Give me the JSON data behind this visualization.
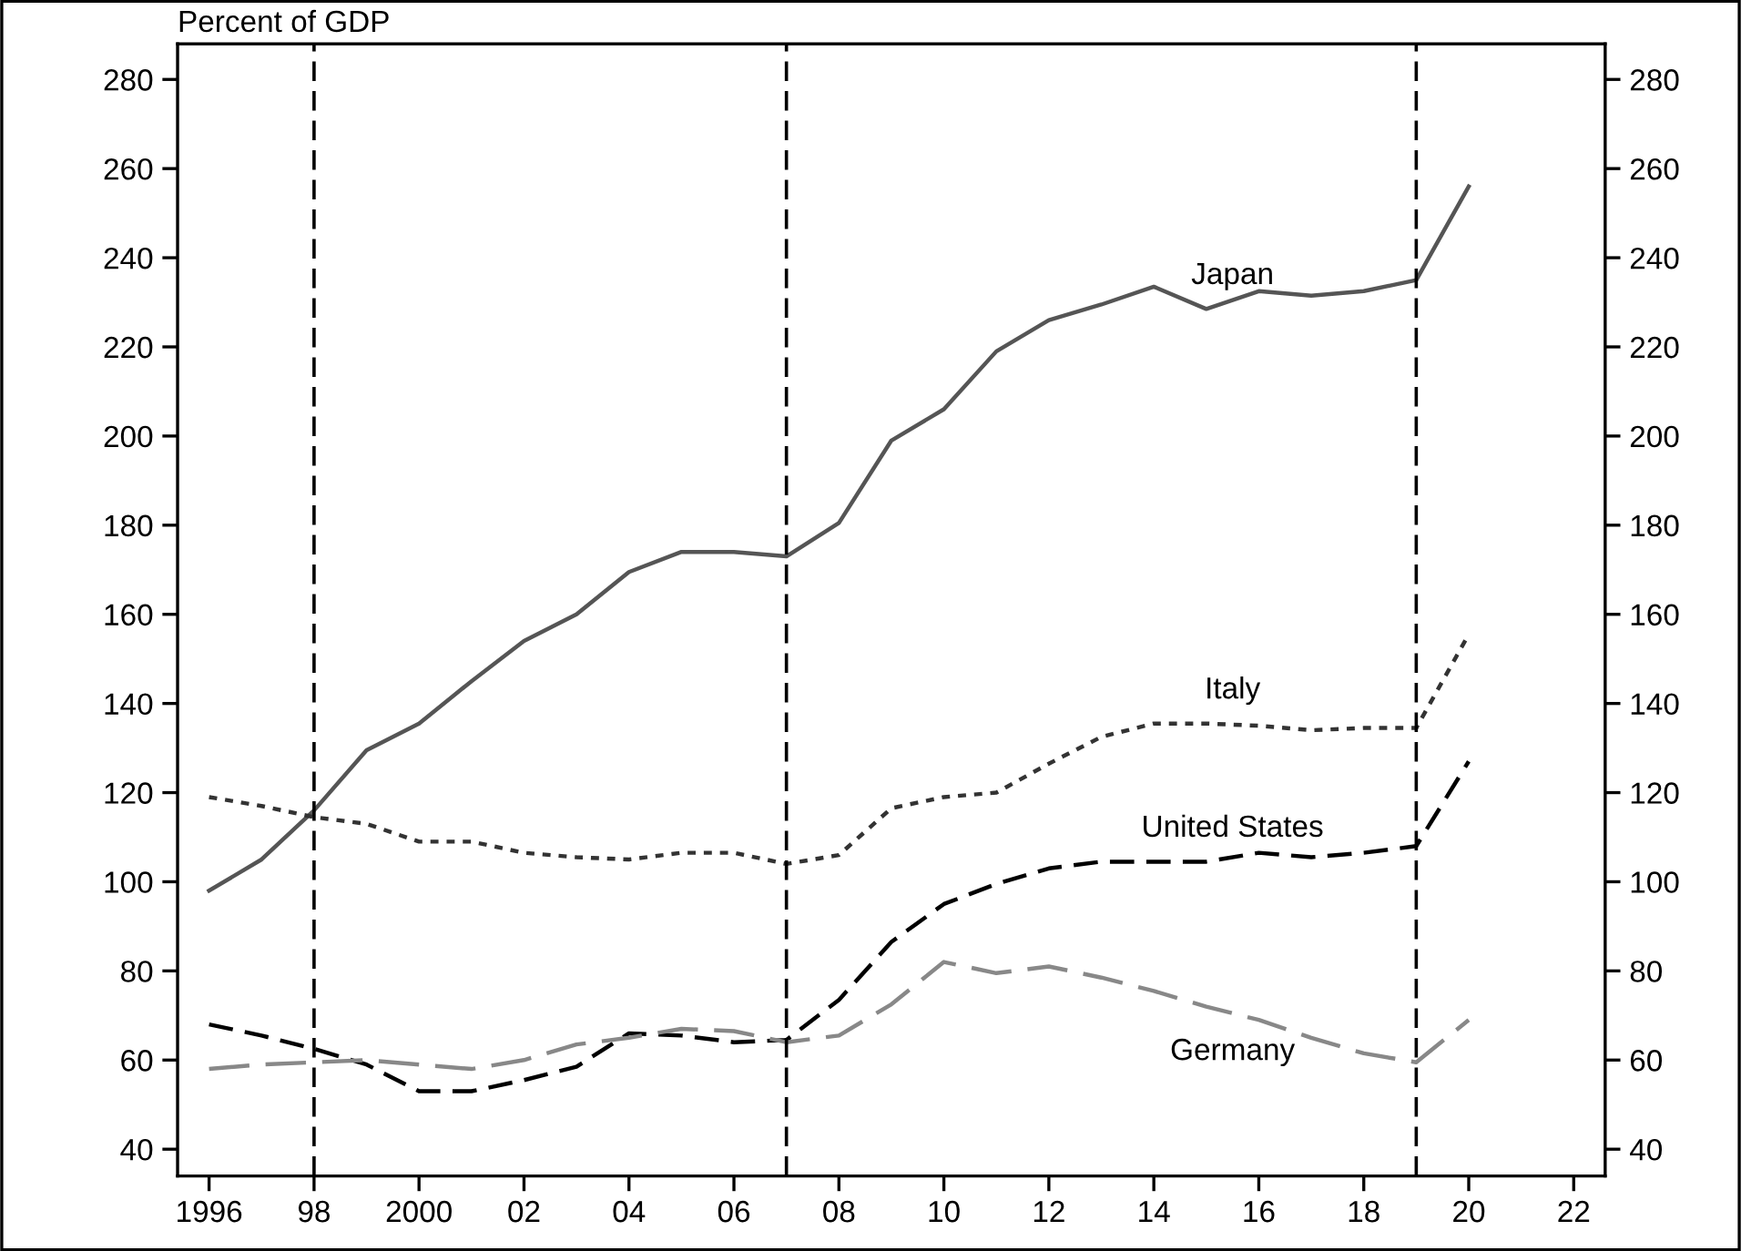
{
  "chart_data": {
    "type": "line",
    "ylabel": "Percent of GDP",
    "x": [
      1996,
      1997,
      1998,
      1999,
      2000,
      2001,
      2002,
      2003,
      2004,
      2005,
      2006,
      2007,
      2008,
      2009,
      2010,
      2011,
      2012,
      2013,
      2014,
      2015,
      2016,
      2017,
      2018,
      2019,
      2020
    ],
    "series": [
      {
        "name": "Japan",
        "color": "#555555",
        "line_style": "solid",
        "values": [
          98,
          105,
          116,
          129.5,
          135.5,
          145,
          154,
          160,
          169.5,
          174,
          174,
          173,
          180.5,
          199,
          206,
          219,
          226,
          229.5,
          233.5,
          228.5,
          232.5,
          231.5,
          232.5,
          235,
          256
        ]
      },
      {
        "name": "Italy",
        "color": "#333333",
        "line_style": "dotted",
        "values": [
          119,
          117,
          114.5,
          113,
          109,
          109,
          106.5,
          105.5,
          105,
          106.5,
          106.5,
          104,
          106,
          116.5,
          119,
          120,
          126.5,
          132.5,
          135.5,
          135.5,
          135,
          134,
          134.5,
          134.5,
          155.5
        ]
      },
      {
        "name": "United States",
        "color": "#000000",
        "line_style": "dashed",
        "values": [
          68,
          65.5,
          62.5,
          59,
          53,
          53,
          55.5,
          58.5,
          66,
          65.5,
          64,
          64.5,
          73.5,
          86.5,
          95,
          99.5,
          103,
          104.5,
          104.5,
          104.5,
          106.5,
          105.5,
          106.5,
          108,
          127
        ]
      },
      {
        "name": "Germany",
        "color": "#888888",
        "line_style": "longdash",
        "values": [
          58,
          59,
          59.5,
          60,
          59,
          58,
          60,
          63.5,
          65,
          67,
          66.5,
          64,
          65.5,
          72.5,
          82,
          79.5,
          81,
          78.5,
          75.5,
          72,
          69,
          65,
          61.5,
          59.5,
          69
        ]
      }
    ],
    "ref_lines": [
      {
        "axis": "x",
        "value": 1998,
        "color": "#000000",
        "line_style": "dashed"
      },
      {
        "axis": "x",
        "value": 2007,
        "color": "#000000",
        "line_style": "dashed"
      },
      {
        "axis": "x",
        "value": 2019,
        "color": "#000000",
        "line_style": "dashed"
      }
    ],
    "xlim": [
      1995.4,
      2022.6
    ],
    "xticks": [
      1996,
      {
        "value": 1998,
        "label": "98"
      },
      2000,
      {
        "value": 2002,
        "label": "02"
      },
      {
        "value": 2004,
        "label": "04"
      },
      {
        "value": 2006,
        "label": "06"
      },
      {
        "value": 2008,
        "label": "08"
      },
      {
        "value": 2010,
        "label": "10"
      },
      {
        "value": 2012,
        "label": "12"
      },
      {
        "value": 2014,
        "label": "14"
      },
      {
        "value": 2016,
        "label": "16"
      },
      {
        "value": 2018,
        "label": "18"
      },
      {
        "value": 2020,
        "label": "20"
      },
      {
        "value": 2022,
        "label": "22"
      }
    ],
    "ylim": [
      34,
      288
    ],
    "yticks": [
      40,
      60,
      80,
      100,
      120,
      140,
      160,
      180,
      200,
      220,
      240,
      260,
      280
    ],
    "y2lim": [
      34,
      288
    ],
    "y2ticks": [
      40,
      60,
      80,
      100,
      120,
      140,
      160,
      180,
      200,
      220,
      240,
      260,
      280
    ],
    "grid": false,
    "legend": false
  }
}
